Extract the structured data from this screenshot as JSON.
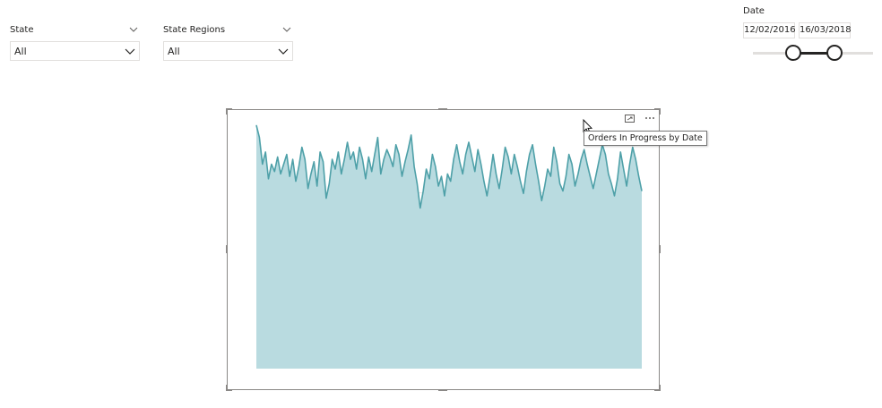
{
  "filters": {
    "state": {
      "label": "State",
      "value": "All"
    },
    "state_regions": {
      "label": "State Regions",
      "value": "All"
    }
  },
  "date_slicer": {
    "label": "Date",
    "start": "12/02/2016",
    "end": "16/03/2018",
    "range_fraction": [
      0.34,
      0.68
    ]
  },
  "visual": {
    "tooltip": "Orders In Progress by Date",
    "icons": [
      "focus-mode-icon",
      "more-options-icon"
    ]
  },
  "chart_data": {
    "type": "area",
    "x_range": [
      "12/02/2016",
      "16/03/2018"
    ],
    "series": [
      {
        "color": "#4ea0a8",
        "fill": "#b9dbe0",
        "values": [
          100,
          95,
          84,
          89,
          78,
          84,
          81,
          87,
          80,
          84,
          88,
          79,
          86,
          77,
          83,
          91,
          86,
          74,
          80,
          85,
          75,
          89,
          85,
          70,
          76,
          86,
          82,
          89,
          80,
          86,
          93,
          86,
          89,
          82,
          91,
          86,
          78,
          87,
          81,
          88,
          95,
          80,
          86,
          90,
          87,
          83,
          92,
          88,
          79,
          85,
          90,
          96,
          83,
          76,
          66,
          73,
          82,
          78,
          88,
          83,
          75,
          79,
          71,
          80,
          77,
          86,
          92,
          85,
          80,
          88,
          93,
          87,
          81,
          90,
          84,
          77,
          71,
          79,
          88,
          80,
          74,
          82,
          91,
          87,
          80,
          88,
          83,
          77,
          72,
          81,
          88,
          92,
          84,
          77,
          69,
          75,
          82,
          79,
          91,
          85,
          76,
          73,
          79,
          88,
          84,
          75,
          80,
          86,
          90,
          84,
          79,
          74,
          80,
          86,
          92,
          88,
          80,
          76,
          71,
          78,
          89,
          82,
          75,
          84,
          91,
          86,
          79,
          73
        ]
      }
    ],
    "grid": true
  }
}
